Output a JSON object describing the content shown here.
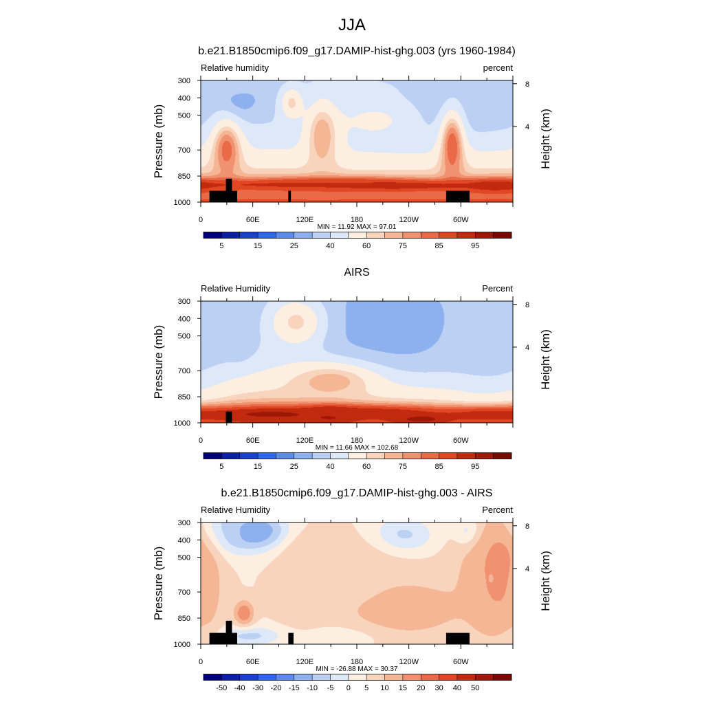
{
  "figure": {
    "main_title": "JJA"
  },
  "palettes": {
    "absolute": [
      "#00007a",
      "#0a1fa6",
      "#1a40d1",
      "#2e66ee",
      "#5c8ae8",
      "#8fb0ee",
      "#bcd0f4",
      "#dde8f8",
      "#fdeee2",
      "#f9d4bd",
      "#f5b696",
      "#f09270",
      "#ea6a47",
      "#e04722",
      "#c22a10",
      "#9e1808",
      "#780800"
    ],
    "difference": [
      "#00007a",
      "#0a1fa6",
      "#1a40d1",
      "#2e66ee",
      "#5c8ae8",
      "#8fb0ee",
      "#bcd0f4",
      "#dde8f8",
      "#fdeee2",
      "#f9d4bd",
      "#f5b696",
      "#f09270",
      "#ea6a47",
      "#e04722",
      "#c22a10",
      "#9e1808",
      "#780800"
    ],
    "land_mask": "#000000"
  },
  "chart_data": [
    {
      "type": "heatmap",
      "title": "b.e21.B1850cmip6.f09_g17.DAMIP-hist-ghg.003 (yrs 1960-1984)",
      "left_label": "Relative humidity",
      "right_label": "percent",
      "ylabel": "Pressure (mb)",
      "ylabel_right": "Height (km)",
      "x_ticks": [
        "0",
        "60E",
        "120E",
        "180",
        "120W",
        "60W"
      ],
      "x_tick_values": [
        0,
        60,
        120,
        180,
        240,
        300
      ],
      "xlim": [
        0,
        360
      ],
      "y_ticks": [
        "300",
        "400",
        "500",
        "700",
        "850",
        "1000"
      ],
      "y_tick_values": [
        300,
        400,
        500,
        700,
        850,
        1000
      ],
      "ylim": [
        300,
        1000
      ],
      "height_ticks": [
        "8",
        "4"
      ],
      "height_tick_values": [
        8,
        4
      ],
      "min": 11.92,
      "max": 97.01,
      "minmax_text": "MIN =  11.92  MAX =  97.01",
      "colorbar_labels": [
        "5",
        "15",
        "25",
        "40",
        "60",
        "75",
        "85",
        "95"
      ],
      "colorbar_levels": [
        5,
        10,
        15,
        20,
        25,
        30,
        40,
        50,
        60,
        65,
        70,
        75,
        80,
        85,
        90,
        95
      ],
      "features": [
        {
          "lon": 45,
          "p": 400,
          "value": 22,
          "lon_width": 15,
          "p_width": 70
        },
        {
          "lon": 40,
          "p": 320,
          "value": 35,
          "lon_width": 25,
          "p_width": 50
        },
        {
          "lon": 240,
          "p": 420,
          "value": 15,
          "lon_width": 45,
          "p_width": 110
        },
        {
          "lon": 225,
          "p": 380,
          "value": 28,
          "lon_width": 75,
          "p_width": 150
        },
        {
          "lon": 310,
          "p": 350,
          "value": 30,
          "lon_width": 10,
          "p_width": 60
        },
        {
          "lon": 335,
          "p": 370,
          "value": 35,
          "lon_width": 25,
          "p_width": 110
        },
        {
          "lon": 180,
          "p": 330,
          "value": 40,
          "lon_width": 50,
          "p_width": 60
        },
        {
          "lon": 200,
          "p": 530,
          "value": 52,
          "lon_width": 50,
          "p_width": 120
        },
        {
          "lon": 140,
          "p": 620,
          "value": 70,
          "lon_width": 14,
          "p_width": 150
        },
        {
          "lon": 105,
          "p": 430,
          "value": 62,
          "lon_width": 10,
          "p_width": 70
        },
        {
          "lon": 30,
          "p": 700,
          "value": 78,
          "lon_width": 12,
          "p_width": 120
        },
        {
          "lon": 290,
          "p": 680,
          "value": 80,
          "lon_width": 10,
          "p_width": 150
        },
        {
          "lon": 100,
          "p": 900,
          "value": 86,
          "lon_width": 120,
          "p_width": 25
        },
        {
          "lon": 230,
          "p": 905,
          "value": 88,
          "lon_width": 70,
          "p_width": 22
        },
        {
          "lon": 160,
          "p": 895,
          "value": 85,
          "lon_width": 60,
          "p_width": 25
        },
        {
          "lon": 340,
          "p": 905,
          "value": 88,
          "lon_width": 30,
          "p_width": 30
        }
      ],
      "land_boxes": [
        {
          "lon0": 10,
          "lon1": 42,
          "p0": 935,
          "p1": 1000
        },
        {
          "lon0": 29,
          "lon1": 36,
          "p0": 865,
          "p1": 1000
        },
        {
          "lon0": 101,
          "lon1": 104,
          "p0": 935,
          "p1": 1000
        },
        {
          "lon0": 283,
          "lon1": 310,
          "p0": 935,
          "p1": 1000
        }
      ]
    },
    {
      "type": "heatmap",
      "title": "AIRS",
      "left_label": "Relative Humidity",
      "right_label": "Percent",
      "ylabel": "Pressure (mb)",
      "ylabel_right": "Height (km)",
      "x_ticks": [
        "0",
        "60E",
        "120E",
        "180",
        "120W",
        "60W"
      ],
      "x_tick_values": [
        0,
        60,
        120,
        180,
        240,
        300
      ],
      "xlim": [
        0,
        360
      ],
      "y_ticks": [
        "300",
        "400",
        "500",
        "700",
        "850",
        "1000"
      ],
      "y_tick_values": [
        300,
        400,
        500,
        700,
        850,
        1000
      ],
      "ylim": [
        300,
        1000
      ],
      "height_ticks": [
        "8",
        "4"
      ],
      "height_tick_values": [
        8,
        4
      ],
      "min": 11.66,
      "max": 102.68,
      "minmax_text": "MIN =  11.66  MAX = 102.68",
      "colorbar_labels": [
        "5",
        "15",
        "25",
        "40",
        "60",
        "75",
        "85",
        "95"
      ],
      "colorbar_levels": [
        5,
        10,
        15,
        20,
        25,
        30,
        40,
        50,
        60,
        65,
        70,
        75,
        80,
        85,
        90,
        95
      ],
      "features": [
        {
          "lon": 45,
          "p": 450,
          "value": 20,
          "lon_width": 10,
          "p_width": 100
        },
        {
          "lon": 38,
          "p": 380,
          "value": 30,
          "lon_width": 20,
          "p_width": 130
        },
        {
          "lon": 225,
          "p": 450,
          "value": 13,
          "lon_width": 45,
          "p_width": 110
        },
        {
          "lon": 220,
          "p": 450,
          "value": 28,
          "lon_width": 80,
          "p_width": 220
        },
        {
          "lon": 340,
          "p": 470,
          "value": 20,
          "lon_width": 25,
          "p_width": 90
        },
        {
          "lon": 335,
          "p": 500,
          "value": 35,
          "lon_width": 40,
          "p_width": 240
        },
        {
          "lon": 15,
          "p": 430,
          "value": 35,
          "lon_width": 15,
          "p_width": 110
        },
        {
          "lon": 110,
          "p": 420,
          "value": 62,
          "lon_width": 25,
          "p_width": 110
        },
        {
          "lon": 150,
          "p": 760,
          "value": 68,
          "lon_width": 40,
          "p_width": 80
        },
        {
          "lon": 150,
          "p": 950,
          "value": 97,
          "lon_width": 18,
          "p_width": 30
        },
        {
          "lon": 90,
          "p": 950,
          "value": 92,
          "lon_width": 90,
          "p_width": 35
        },
        {
          "lon": 255,
          "p": 975,
          "value": 95,
          "lon_width": 25,
          "p_width": 22
        },
        {
          "lon": 200,
          "p": 940,
          "value": 88,
          "lon_width": 70,
          "p_width": 30
        },
        {
          "lon": 330,
          "p": 955,
          "value": 88,
          "lon_width": 40,
          "p_width": 30
        }
      ],
      "land_boxes": [
        {
          "lon0": 29,
          "lon1": 36,
          "p0": 935,
          "p1": 1000
        }
      ]
    },
    {
      "type": "heatmap",
      "title": "b.e21.B1850cmip6.f09_g17.DAMIP-hist-ghg.003 - AIRS",
      "left_label": "Relative Humidity",
      "right_label": "Percent",
      "ylabel": "Pressure (mb)",
      "ylabel_right": "Height (km)",
      "x_ticks": [
        "0",
        "60E",
        "120E",
        "180",
        "120W",
        "60W"
      ],
      "x_tick_values": [
        0,
        60,
        120,
        180,
        240,
        300
      ],
      "xlim": [
        0,
        360
      ],
      "y_ticks": [
        "300",
        "400",
        "500",
        "700",
        "850",
        "1000"
      ],
      "y_tick_values": [
        300,
        400,
        500,
        700,
        850,
        1000
      ],
      "ylim": [
        300,
        1000
      ],
      "height_ticks": [
        "8",
        "4"
      ],
      "height_tick_values": [
        8,
        4
      ],
      "min": -26.88,
      "max": 30.37,
      "minmax_text": "MIN = -26.88  MAX =  30.37",
      "colorbar_labels": [
        "-50",
        "-40",
        "-30",
        "-20",
        "-15",
        "-10",
        "-5",
        "0",
        "5",
        "10",
        "15",
        "20",
        "30",
        "40",
        "50"
      ],
      "colorbar_levels": [
        -50,
        -40,
        -30,
        -20,
        -15,
        -10,
        -5,
        0,
        5,
        10,
        15,
        20,
        30,
        40,
        50
      ],
      "features": [
        {
          "lon": 70,
          "p": 360,
          "value": -25,
          "lon_width": 15,
          "p_width": 40
        },
        {
          "lon": 60,
          "p": 360,
          "value": -15,
          "lon_width": 35,
          "p_width": 80
        },
        {
          "lon": 25,
          "p": 350,
          "value": -10,
          "lon_width": 18,
          "p_width": 70
        },
        {
          "lon": 230,
          "p": 380,
          "value": -10,
          "lon_width": 25,
          "p_width": 70
        },
        {
          "lon": 310,
          "p": 360,
          "value": -12,
          "lon_width": 10,
          "p_width": 60
        },
        {
          "lon": 55,
          "p": 950,
          "value": -8,
          "lon_width": 25,
          "p_width": 35
        },
        {
          "lon": 150,
          "p": 940,
          "value": -6,
          "lon_width": 40,
          "p_width": 45
        },
        {
          "lon": 240,
          "p": 800,
          "value": 24,
          "lon_width": 28,
          "p_width": 70
        },
        {
          "lon": 210,
          "p": 760,
          "value": 12,
          "lon_width": 60,
          "p_width": 150
        },
        {
          "lon": 345,
          "p": 580,
          "value": 26,
          "lon_width": 15,
          "p_width": 150
        },
        {
          "lon": 335,
          "p": 620,
          "value": 15,
          "lon_width": 30,
          "p_width": 280
        },
        {
          "lon": 10,
          "p": 680,
          "value": 12,
          "lon_width": 10,
          "p_width": 160
        },
        {
          "lon": 50,
          "p": 820,
          "value": 20,
          "lon_width": 8,
          "p_width": 50
        },
        {
          "lon": 120,
          "p": 640,
          "value": 12,
          "lon_width": 20,
          "p_width": 200
        },
        {
          "lon": 160,
          "p": 560,
          "value": 8,
          "lon_width": 50,
          "p_width": 180
        }
      ],
      "land_boxes": [
        {
          "lon0": 10,
          "lon1": 42,
          "p0": 935,
          "p1": 1000
        },
        {
          "lon0": 29,
          "lon1": 36,
          "p0": 865,
          "p1": 1000
        },
        {
          "lon0": 101,
          "lon1": 107,
          "p0": 935,
          "p1": 1000
        },
        {
          "lon0": 283,
          "lon1": 310,
          "p0": 935,
          "p1": 1000
        }
      ]
    }
  ]
}
